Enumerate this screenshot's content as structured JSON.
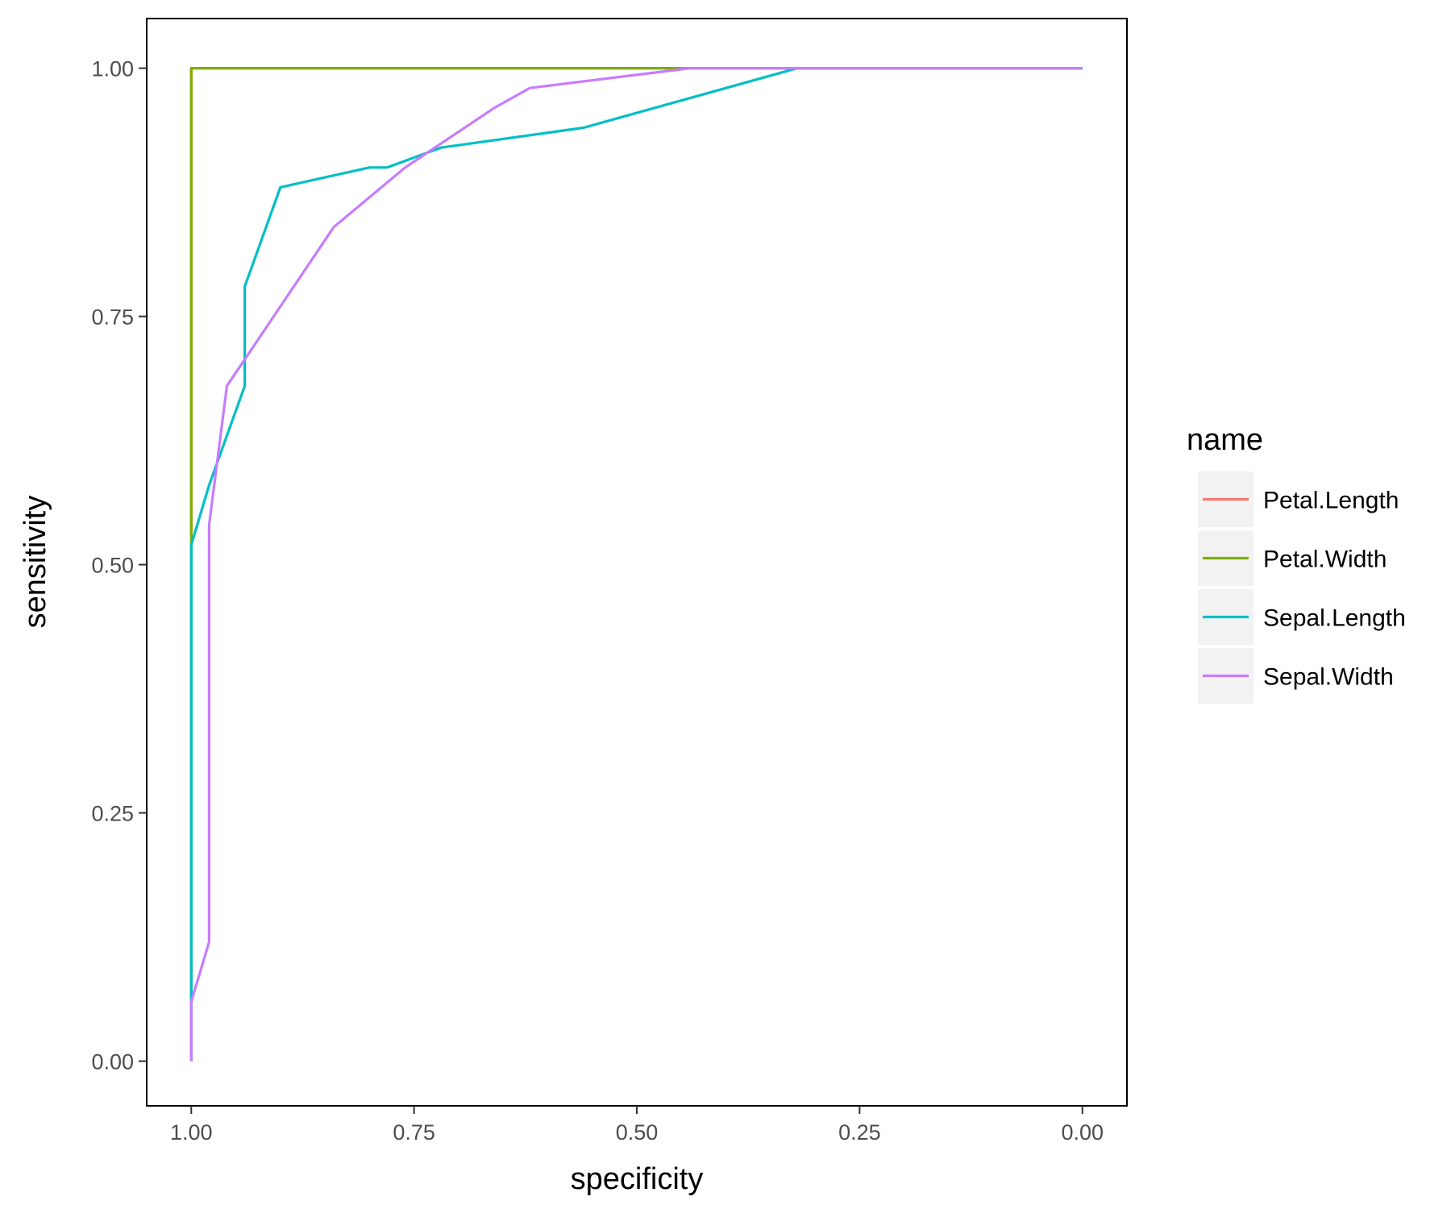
{
  "chart_data": {
    "type": "line",
    "xlabel": "specificity",
    "ylabel": "sensitivity",
    "xlim": [
      1.05,
      -0.05
    ],
    "ylim": [
      -0.045,
      1.05
    ],
    "x_reversed": true,
    "x_ticks": [
      1.0,
      0.75,
      0.5,
      0.25,
      0.0
    ],
    "x_tick_labels": [
      "1.00",
      "0.75",
      "0.50",
      "0.25",
      "0.00"
    ],
    "y_ticks": [
      0.0,
      0.25,
      0.5,
      0.75,
      1.0
    ],
    "y_tick_labels": [
      "0.00",
      "0.25",
      "0.50",
      "0.75",
      "1.00"
    ],
    "grid": false,
    "legend": {
      "title": "name",
      "position": "right"
    },
    "series": [
      {
        "name": "Petal.Length",
        "color": "#F8766D",
        "points": [
          [
            1.0,
            0.0
          ],
          [
            1.0,
            1.0
          ],
          [
            0.0,
            1.0
          ]
        ]
      },
      {
        "name": "Petal.Width",
        "color": "#7CAE00",
        "points": [
          [
            1.0,
            0.0
          ],
          [
            1.0,
            1.0
          ],
          [
            0.0,
            1.0
          ]
        ]
      },
      {
        "name": "Sepal.Length",
        "color": "#00BFC4",
        "points": [
          [
            1.0,
            0.0
          ],
          [
            1.0,
            0.06
          ],
          [
            1.0,
            0.52
          ],
          [
            0.98,
            0.58
          ],
          [
            0.94,
            0.68
          ],
          [
            0.94,
            0.78
          ],
          [
            0.9,
            0.88
          ],
          [
            0.8,
            0.9
          ],
          [
            0.78,
            0.9
          ],
          [
            0.72,
            0.92
          ],
          [
            0.56,
            0.94
          ],
          [
            0.32,
            1.0
          ],
          [
            0.0,
            1.0
          ]
        ]
      },
      {
        "name": "Sepal.Width",
        "color": "#C77CFF",
        "points": [
          [
            1.0,
            0.0
          ],
          [
            1.0,
            0.06
          ],
          [
            0.98,
            0.12
          ],
          [
            0.98,
            0.54
          ],
          [
            0.96,
            0.68
          ],
          [
            0.84,
            0.84
          ],
          [
            0.76,
            0.9
          ],
          [
            0.66,
            0.96
          ],
          [
            0.62,
            0.98
          ],
          [
            0.44,
            1.0
          ],
          [
            0.0,
            1.0
          ]
        ]
      }
    ]
  }
}
